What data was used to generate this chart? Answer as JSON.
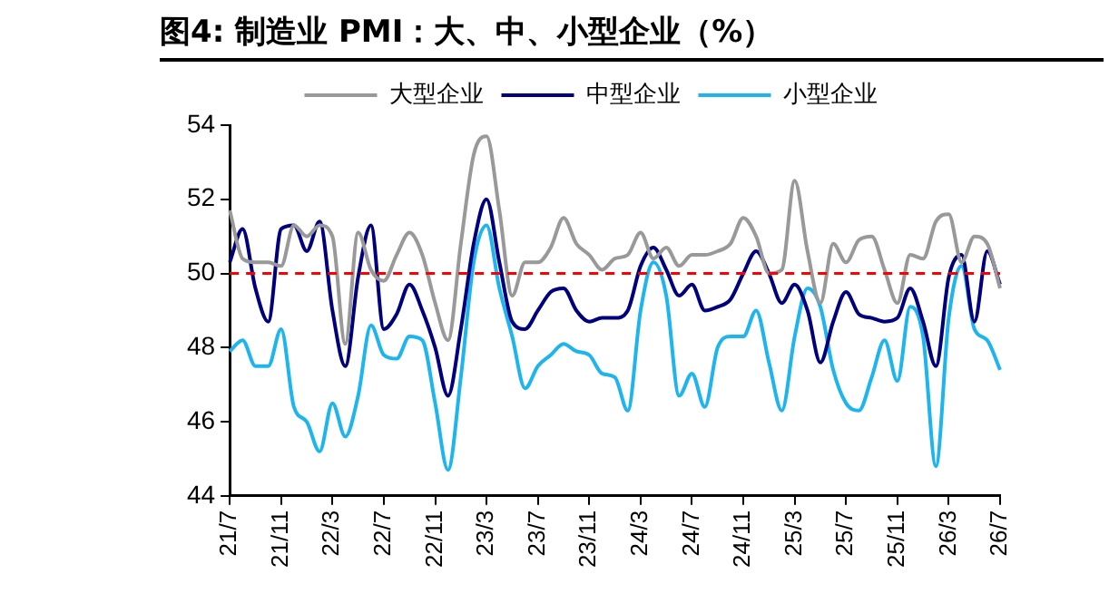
{
  "chart_data": {
    "type": "line",
    "title": "图4:  制造业 PMI：大、中、小型企业（%）",
    "categories": [
      "21/7",
      null,
      null,
      null,
      "21/11",
      null,
      null,
      null,
      "22/3",
      null,
      null,
      null,
      "22/7",
      null,
      null,
      null,
      "22/11",
      null,
      null,
      null,
      "23/3",
      null,
      null,
      null,
      "23/7",
      null,
      null,
      null,
      "23/11",
      null,
      null,
      null,
      "24/3",
      null,
      null,
      null,
      "24/7",
      null,
      null,
      null,
      "24/11",
      null,
      null,
      null,
      "25/3",
      null,
      null,
      null,
      "25/7",
      null,
      null,
      null,
      "25/11",
      null,
      null,
      null,
      "26/3",
      null,
      null,
      null,
      "26/7"
    ],
    "series": [
      {
        "name": "大型企业",
        "color": "#999999",
        "values": [
          51.7,
          50.4,
          50.3,
          50.3,
          50.2,
          51.3,
          51.0,
          51.3,
          51.0,
          48.1,
          51.1,
          50.1,
          49.8,
          50.5,
          51.1,
          50.5,
          49.2,
          48.2,
          50.8,
          53.2,
          53.7,
          51.7,
          49.4,
          50.3,
          50.3,
          50.7,
          51.5,
          50.8,
          50.5,
          50.1,
          50.4,
          50.5,
          51.1,
          50.4,
          50.7,
          50.2,
          50.5,
          50.5,
          50.6,
          50.8,
          51.5,
          51.0,
          50.0,
          50.1,
          52.5,
          50.6,
          49.2,
          50.8,
          50.3,
          50.9,
          51.0,
          50.1,
          49.2,
          50.5,
          50.4,
          51.4,
          51.6,
          50.3,
          51.0,
          50.8,
          49.6
        ]
      },
      {
        "name": "中型企业",
        "color": "#00007f",
        "values": [
          50.3,
          51.2,
          49.6,
          48.7,
          51.2,
          51.3,
          50.6,
          51.4,
          49.0,
          47.5,
          49.9,
          51.3,
          48.5,
          48.9,
          49.7,
          49.0,
          48.0,
          46.7,
          48.5,
          50.8,
          52.0,
          50.3,
          48.7,
          48.5,
          49.0,
          49.5,
          49.6,
          49.0,
          48.7,
          48.8,
          48.8,
          49.0,
          50.2,
          50.7,
          50.1,
          49.4,
          49.7,
          49.0,
          49.1,
          49.3,
          50.0,
          50.6,
          50.0,
          49.2,
          49.7,
          49.0,
          47.6,
          48.7,
          49.5,
          48.9,
          48.8,
          48.7,
          48.8,
          49.6,
          48.7,
          47.5,
          49.9,
          50.5,
          48.7,
          50.6,
          49.7
        ]
      },
      {
        "name": "小型企业",
        "color": "#1eb4ee",
        "values": [
          47.9,
          48.2,
          47.5,
          47.5,
          48.5,
          46.4,
          46.0,
          45.2,
          46.5,
          45.6,
          46.7,
          48.6,
          47.8,
          47.7,
          48.3,
          48.2,
          46.5,
          44.7,
          47.2,
          50.3,
          51.3,
          49.6,
          48.3,
          46.9,
          47.5,
          47.8,
          48.1,
          47.9,
          47.8,
          47.3,
          47.2,
          46.3,
          49.0,
          50.3,
          49.4,
          46.7,
          47.3,
          46.4,
          48.0,
          48.3,
          48.3,
          49.0,
          47.6,
          46.3,
          48.3,
          49.6,
          49.1,
          47.4,
          46.5,
          46.3,
          47.2,
          48.2,
          47.1,
          49.1,
          48.3,
          44.8,
          48.8,
          50.2,
          48.5,
          48.2,
          47.4
        ]
      }
    ],
    "ylim": [
      44,
      54
    ],
    "yticks": [
      44,
      46,
      48,
      50,
      52,
      54
    ],
    "grid": false,
    "legend": "top",
    "ref_lines": [
      {
        "axis": "y",
        "value": 50,
        "color": "#ff0000",
        "line_style": "dashed"
      }
    ]
  }
}
